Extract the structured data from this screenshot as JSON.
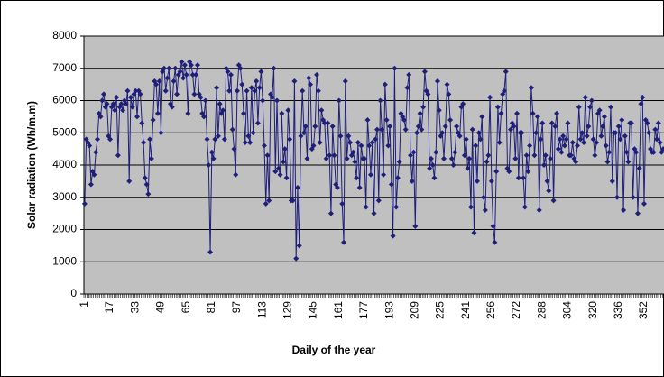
{
  "chart_data": {
    "type": "line",
    "x_label": "Daily of the year",
    "y_label": "Solar radiation (Wh/m.m)",
    "color": "#1f1f7a",
    "ylim": [
      0,
      8000
    ],
    "yticks": [
      0,
      1000,
      2000,
      3000,
      4000,
      5000,
      6000,
      7000,
      8000
    ],
    "grid": true,
    "categories": [
      "1",
      null,
      null,
      null,
      null,
      null,
      null,
      null,
      null,
      null,
      null,
      null,
      null,
      null,
      null,
      null,
      "17",
      null,
      null,
      null,
      null,
      null,
      null,
      null,
      null,
      null,
      null,
      null,
      null,
      null,
      null,
      null,
      "33",
      null,
      null,
      null,
      null,
      null,
      null,
      null,
      null,
      null,
      null,
      null,
      null,
      null,
      null,
      null,
      "49",
      null,
      null,
      null,
      null,
      null,
      null,
      null,
      null,
      null,
      null,
      null,
      null,
      null,
      null,
      null,
      "65",
      null,
      null,
      null,
      null,
      null,
      null,
      null,
      null,
      null,
      null,
      null,
      null,
      null,
      null,
      null,
      "81",
      null,
      null,
      null,
      null,
      null,
      null,
      null,
      null,
      null,
      null,
      null,
      null,
      null,
      null,
      null,
      "97",
      null,
      null,
      null,
      null,
      null,
      null,
      null,
      null,
      null,
      null,
      null,
      null,
      null,
      null,
      null,
      "113",
      null,
      null,
      null,
      null,
      null,
      null,
      null,
      null,
      null,
      null,
      null,
      null,
      null,
      null,
      null,
      "129",
      null,
      null,
      null,
      null,
      null,
      null,
      null,
      null,
      null,
      null,
      null,
      null,
      null,
      null,
      null,
      "145",
      null,
      null,
      null,
      null,
      null,
      null,
      null,
      null,
      null,
      null,
      null,
      null,
      null,
      null,
      null,
      "161",
      null,
      null,
      null,
      null,
      null,
      null,
      null,
      null,
      null,
      null,
      null,
      null,
      null,
      null,
      null,
      "177",
      null,
      null,
      null,
      null,
      null,
      null,
      null,
      null,
      null,
      null,
      null,
      null,
      null,
      null,
      null,
      "193",
      null,
      null,
      null,
      null,
      null,
      null,
      null,
      null,
      null,
      null,
      null,
      null,
      null,
      null,
      null,
      "209",
      null,
      null,
      null,
      null,
      null,
      null,
      null,
      null,
      null,
      null,
      null,
      null,
      null,
      null,
      null,
      "225",
      null,
      null,
      null,
      null,
      null,
      null,
      null,
      null,
      null,
      null,
      null,
      null,
      null,
      null,
      null,
      "241",
      null,
      null,
      null,
      null,
      null,
      null,
      null,
      null,
      null,
      null,
      null,
      null,
      null,
      null,
      null,
      "256",
      null,
      null,
      null,
      null,
      null,
      null,
      null,
      null,
      null,
      null,
      null,
      null,
      null,
      null,
      null,
      "272",
      null,
      null,
      null,
      null,
      null,
      null,
      null,
      null,
      null,
      null,
      null,
      null,
      null,
      null,
      null,
      "288",
      null,
      null,
      null,
      null,
      null,
      null,
      null,
      null,
      null,
      null,
      null,
      null,
      null,
      null,
      null,
      "304",
      null,
      null,
      null,
      null,
      null,
      null,
      null,
      null,
      null,
      null,
      null,
      null,
      null,
      null,
      null,
      "320",
      null,
      null,
      null,
      null,
      null,
      null,
      null,
      null,
      null,
      null,
      null,
      null,
      null,
      null,
      null,
      "336",
      null,
      null,
      null,
      null,
      null,
      null,
      null,
      null,
      null,
      null,
      null,
      null,
      null,
      null,
      null,
      "352",
      null,
      null,
      null,
      null,
      null,
      null,
      null,
      null,
      null,
      null,
      null,
      null
    ],
    "values": [
      2800,
      4800,
      4700,
      4600,
      3400,
      3800,
      3700,
      4400,
      4800,
      5600,
      5500,
      6000,
      6200,
      5800,
      5900,
      4900,
      4800,
      5800,
      5900,
      5700,
      6100,
      4300,
      5800,
      5900,
      5700,
      6000,
      5900,
      6300,
      3500,
      6100,
      5800,
      6200,
      6300,
      5500,
      6300,
      6200,
      5300,
      4700,
      3600,
      3400,
      3100,
      4800,
      4200,
      5400,
      6600,
      6500,
      5600,
      6600,
      5000,
      6900,
      7000,
      6300,
      6700,
      7000,
      5900,
      5800,
      6600,
      7000,
      6200,
      6800,
      6900,
      7200,
      6700,
      7100,
      6800,
      5600,
      7200,
      7100,
      6800,
      6200,
      6800,
      7100,
      6200,
      6100,
      5600,
      5500,
      6000,
      4800,
      4000,
      1300,
      4400,
      4200,
      4800,
      6400,
      4900,
      5900,
      5600,
      5700,
      4800,
      7000,
      6900,
      6300,
      6800,
      5100,
      4500,
      3700,
      6300,
      7100,
      7000,
      6500,
      5600,
      4700,
      6300,
      4900,
      4700,
      6400,
      5000,
      6300,
      6600,
      5300,
      6400,
      6900,
      6000,
      4600,
      2800,
      4300,
      2900,
      6200,
      6100,
      7000,
      3800,
      6000,
      3900,
      3700,
      5600,
      4100,
      4500,
      3600,
      5700,
      4800,
      2900,
      2900,
      6600,
      1100,
      3300,
      1500,
      4900,
      6300,
      5000,
      5200,
      4200,
      6700,
      6500,
      4500,
      4600,
      5200,
      6800,
      6300,
      4700,
      5700,
      5400,
      5300,
      4200,
      5300,
      4300,
      2500,
      5200,
      4300,
      3400,
      3300,
      6000,
      4900,
      2800,
      1600,
      6600,
      4200,
      4900,
      4700,
      4300,
      4400,
      4100,
      3600,
      4700,
      3300,
      4600,
      4200,
      4200,
      2700,
      5400,
      4600,
      3700,
      4700,
      2500,
      4800,
      5100,
      2900,
      6000,
      5100,
      3700,
      6500,
      5400,
      4600,
      5200,
      3400,
      1800,
      7000,
      2700,
      3600,
      4100,
      5600,
      5500,
      5400,
      5100,
      6400,
      6800,
      4300,
      3500,
      4400,
      2100,
      5000,
      5200,
      5600,
      5100,
      5800,
      6900,
      6300,
      6200,
      3900,
      4200,
      4000,
      3600,
      4400,
      6600,
      5700,
      4900,
      5000,
      4200,
      5200,
      6500,
      6200,
      5400,
      4200,
      4000,
      4400,
      5200,
      5000,
      4900,
      5800,
      5900,
      4300,
      4800,
      3900,
      4200,
      2700,
      5100,
      1900,
      4600,
      3500,
      5000,
      4800,
      5500,
      3000,
      2600,
      4100,
      4300,
      6100,
      3500,
      2100,
      1600,
      3800,
      5800,
      4700,
      5600,
      6200,
      6300,
      6900,
      3900,
      3800,
      5100,
      5300,
      5200,
      4200,
      5600,
      3600,
      5000,
      5000,
      3600,
      2700,
      4300,
      3800,
      4600,
      6400,
      5600,
      4300,
      5000,
      5500,
      2600,
      4800,
      5300,
      4000,
      4300,
      3500,
      3200,
      4200,
      5300,
      2900,
      5200,
      5600,
      4500,
      4800,
      4400,
      4900,
      4600,
      4800,
      5300,
      4300,
      4300,
      4700,
      4200,
      4100,
      4600,
      5800,
      4800,
      5000,
      4700,
      6100,
      4900,
      5200,
      5800,
      6000,
      4800,
      4300,
      4700,
      5600,
      5700,
      4900,
      5200,
      5500,
      4600,
      4100,
      4400,
      5800,
      3500,
      5000,
      5000,
      3000,
      5200,
      4800,
      5400,
      2600,
      4900,
      4400,
      4100,
      5300,
      5300,
      3000,
      4500,
      4400,
      2500,
      3900,
      5900,
      6100,
      2800,
      5400,
      5300,
      5000,
      4500,
      4400,
      4400,
      5100,
      4800,
      5300,
      4700,
      4400,
      4500
    ]
  }
}
